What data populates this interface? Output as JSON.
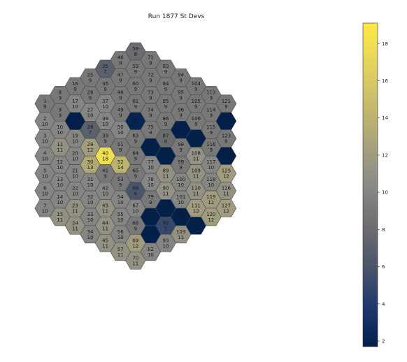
{
  "chart_data": {
    "type": "heatmap",
    "title": "Run 1877 St Devs",
    "colormap": "cividis",
    "colorbar": {
      "vmin": 1.7,
      "vmax": 19.1,
      "ticks": [
        2,
        4,
        6,
        8,
        10,
        12,
        14,
        16,
        18
      ]
    },
    "layout": "hexagonal-grid",
    "columns": [
      [
        1,
        2,
        3,
        4,
        5,
        6,
        7
      ],
      [
        8,
        9,
        10,
        11,
        12,
        13,
        14,
        15
      ],
      [
        16,
        17,
        18,
        19,
        20,
        21,
        22,
        23,
        24
      ],
      [
        25,
        26,
        27,
        28,
        29,
        30,
        31,
        32,
        33,
        34
      ],
      [
        35,
        36,
        37,
        38,
        39,
        40,
        41,
        42,
        43,
        44,
        45
      ],
      [
        46,
        47,
        48,
        49,
        50,
        51,
        52,
        53,
        54,
        55,
        56,
        57
      ],
      [
        58,
        59,
        60,
        61,
        62,
        63,
        64,
        65,
        66,
        67,
        68,
        69,
        70
      ],
      [
        71,
        72,
        73,
        74,
        75,
        76,
        77,
        78,
        79,
        80,
        81,
        82
      ],
      [
        83,
        84,
        85,
        86,
        87,
        88,
        89,
        90,
        91,
        92,
        93
      ],
      [
        94,
        95,
        96,
        97,
        98,
        99,
        100,
        101,
        102,
        103
      ],
      [
        104,
        105,
        106,
        107,
        108,
        109,
        110,
        111,
        112
      ],
      [
        113,
        114,
        115,
        116,
        117,
        118,
        119,
        120
      ],
      [
        121,
        122,
        123,
        124,
        125,
        126,
        127
      ]
    ],
    "cells": [
      {
        "id": 1,
        "value": 9
      },
      {
        "id": 2,
        "value": 10
      },
      {
        "id": 3,
        "value": 10
      },
      {
        "id": 4,
        "value": 10
      },
      {
        "id": 5,
        "value": 10
      },
      {
        "id": 6,
        "value": 10
      },
      {
        "id": 7,
        "value": 10
      },
      {
        "id": 8,
        "value": 9
      },
      {
        "id": 9,
        "value": 9
      },
      {
        "id": 10,
        "value": 10
      },
      {
        "id": 11,
        "value": 11
      },
      {
        "id": 12,
        "value": 10
      },
      {
        "id": 13,
        "value": 10
      },
      {
        "id": 14,
        "value": 10
      },
      {
        "id": 15,
        "value": 11
      },
      {
        "id": 16,
        "value": 9
      },
      {
        "id": 17,
        "value": 10
      },
      {
        "id": 18,
        "value": 1
      },
      {
        "id": 19,
        "value": 10
      },
      {
        "id": 20,
        "value": 10
      },
      {
        "id": 21,
        "value": 10
      },
      {
        "id": 22,
        "value": 10
      },
      {
        "id": 23,
        "value": 11
      },
      {
        "id": 24,
        "value": 11
      },
      {
        "id": 25,
        "value": 9
      },
      {
        "id": 26,
        "value": 9
      },
      {
        "id": 27,
        "value": 10
      },
      {
        "id": 28,
        "value": 7
      },
      {
        "id": 29,
        "value": 12
      },
      {
        "id": 30,
        "value": 13
      },
      {
        "id": 31,
        "value": 10
      },
      {
        "id": 32,
        "value": 10
      },
      {
        "id": 33,
        "value": 10
      },
      {
        "id": 34,
        "value": 10
      },
      {
        "id": 35,
        "value": 7
      },
      {
        "id": 36,
        "value": 9
      },
      {
        "id": 37,
        "value": 10
      },
      {
        "id": 38,
        "value": 10
      },
      {
        "id": 39,
        "value": 9
      },
      {
        "id": 40,
        "value": 18
      },
      {
        "id": 41,
        "value": 9
      },
      {
        "id": 42,
        "value": 10
      },
      {
        "id": 43,
        "value": 11
      },
      {
        "id": 44,
        "value": 11
      },
      {
        "id": 45,
        "value": 11
      },
      {
        "id": 46,
        "value": 9
      },
      {
        "id": 47,
        "value": 9
      },
      {
        "id": 48,
        "value": 9
      },
      {
        "id": 49,
        "value": 9
      },
      {
        "id": 50,
        "value": 10
      },
      {
        "id": 51,
        "value": 9
      },
      {
        "id": 52,
        "value": 14
      },
      {
        "id": 53,
        "value": 9
      },
      {
        "id": 54,
        "value": 10
      },
      {
        "id": 55,
        "value": 10
      },
      {
        "id": 56,
        "value": 10
      },
      {
        "id": 57,
        "value": 11
      },
      {
        "id": 58,
        "value": 8
      },
      {
        "id": 59,
        "value": 9
      },
      {
        "id": 60,
        "value": 9
      },
      {
        "id": 61,
        "value": 9
      },
      {
        "id": 62,
        "value": 2
      },
      {
        "id": 63,
        "value": 9
      },
      {
        "id": 64,
        "value": 9
      },
      {
        "id": 65,
        "value": 9
      },
      {
        "id": 66,
        "value": 6
      },
      {
        "id": 67,
        "value": 10
      },
      {
        "id": 68,
        "value": 9
      },
      {
        "id": 69,
        "value": 12
      },
      {
        "id": 70,
        "value": 11
      },
      {
        "id": 71,
        "value": 9
      },
      {
        "id": 72,
        "value": 9
      },
      {
        "id": 73,
        "value": 9
      },
      {
        "id": 74,
        "value": 9
      },
      {
        "id": 75,
        "value": 9
      },
      {
        "id": 76,
        "value": 1
      },
      {
        "id": 77,
        "value": 10
      },
      {
        "id": 78,
        "value": 10
      },
      {
        "id": 79,
        "value": 9
      },
      {
        "id": 80,
        "value": 1
      },
      {
        "id": 81,
        "value": 1
      },
      {
        "id": 82,
        "value": 10
      },
      {
        "id": 83,
        "value": 9
      },
      {
        "id": 84,
        "value": 9
      },
      {
        "id": 85,
        "value": 9
      },
      {
        "id": 86,
        "value": 9
      },
      {
        "id": 87,
        "value": 8
      },
      {
        "id": 88,
        "value": 1
      },
      {
        "id": 89,
        "value": 11
      },
      {
        "id": 90,
        "value": 11
      },
      {
        "id": 91,
        "value": 1
      },
      {
        "id": 92,
        "value": 5
      },
      {
        "id": 93,
        "value": 10
      },
      {
        "id": 94,
        "value": 9
      },
      {
        "id": 95,
        "value": 9
      },
      {
        "id": 96,
        "value": 9
      },
      {
        "id": 97,
        "value": 1
      },
      {
        "id": 98,
        "value": 9
      },
      {
        "id": 99,
        "value": 9
      },
      {
        "id": 100,
        "value": 10
      },
      {
        "id": 101,
        "value": 10
      },
      {
        "id": 102,
        "value": 1
      },
      {
        "id": 103,
        "value": 11
      },
      {
        "id": 104,
        "value": 9
      },
      {
        "id": 105,
        "value": 9
      },
      {
        "id": 106,
        "value": 9
      },
      {
        "id": 107,
        "value": 1
      },
      {
        "id": 108,
        "value": 11
      },
      {
        "id": 109,
        "value": 11
      },
      {
        "id": 110,
        "value": 11
      },
      {
        "id": 111,
        "value": 12
      },
      {
        "id": 112,
        "value": 1
      },
      {
        "id": 113,
        "value": 9
      },
      {
        "id": 114,
        "value": 9
      },
      {
        "id": 115,
        "value": 9
      },
      {
        "id": 116,
        "value": 9
      },
      {
        "id": 117,
        "value": 10
      },
      {
        "id": 118,
        "value": 10
      },
      {
        "id": 119,
        "value": 12
      },
      {
        "id": 120,
        "value": 12
      },
      {
        "id": 121,
        "value": 9
      },
      {
        "id": 122,
        "value": 1
      },
      {
        "id": 123,
        "value": 9
      },
      {
        "id": 124,
        "value": 1
      },
      {
        "id": 125,
        "value": 12
      },
      {
        "id": 126,
        "value": 11
      },
      {
        "id": 127,
        "value": 12
      }
    ]
  }
}
